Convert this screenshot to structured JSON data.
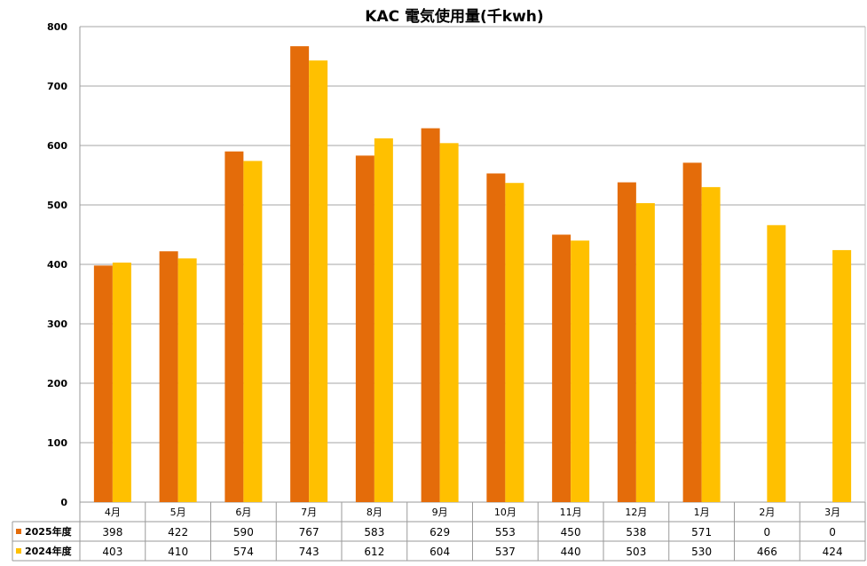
{
  "chart_data": {
    "type": "bar",
    "title": "KAC 電気使用量(千kwh)",
    "categories": [
      "4月",
      "5月",
      "6月",
      "7月",
      "8月",
      "9月",
      "10月",
      "11月",
      "12月",
      "1月",
      "2月",
      "3月"
    ],
    "series": [
      {
        "name": "2025年度",
        "color": "#E46C0A",
        "values": [
          398,
          422,
          590,
          767,
          583,
          629,
          553,
          450,
          538,
          571,
          0,
          0
        ]
      },
      {
        "name": "2024年度",
        "color": "#FFC000",
        "values": [
          403,
          410,
          574,
          743,
          612,
          604,
          537,
          440,
          503,
          530,
          466,
          424
        ]
      }
    ],
    "ylim": [
      0,
      800
    ],
    "yticks": [
      0,
      100,
      200,
      300,
      400,
      500,
      600,
      700,
      800
    ],
    "grid": true,
    "legend": "data-table",
    "xlabel": "",
    "ylabel": ""
  }
}
